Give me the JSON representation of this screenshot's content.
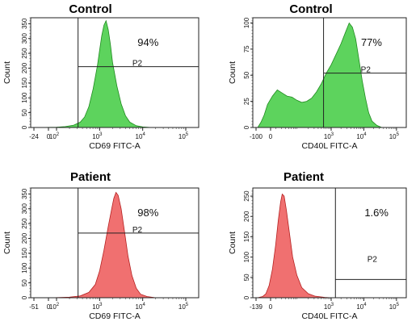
{
  "chart_data": [
    {
      "type": "area",
      "title": "Control",
      "xlabel": "CD69 FITC-A",
      "ylabel": "Count",
      "x_scale": "log",
      "x_ticks": [
        {
          "label": "-24",
          "value": -24,
          "sup": ""
        },
        {
          "label": "0",
          "value": 0,
          "sup": ""
        },
        {
          "label": "10",
          "value": 100,
          "sup": "2"
        },
        {
          "label": "10",
          "value": 1000,
          "sup": "3"
        },
        {
          "label": "10",
          "value": 10000,
          "sup": "4"
        },
        {
          "label": "10",
          "value": 100000,
          "sup": "5"
        }
      ],
      "y_ticks": [
        "0",
        "50",
        "100",
        "150",
        "200",
        "250",
        "300",
        "350"
      ],
      "ylim": [
        0,
        370
      ],
      "x_log_range": [
        1.4,
        5.3
      ],
      "fill_color": "#5dd35d",
      "stroke_color": "#1f8a1f",
      "gate": {
        "label": "P2",
        "percent": "94%",
        "x_start": 316,
        "level": 205
      },
      "series": [
        {
          "values": [
            [
              1.6,
              0
            ],
            [
              2.0,
              1
            ],
            [
              2.2,
              3
            ],
            [
              2.4,
              8
            ],
            [
              2.55,
              18
            ],
            [
              2.65,
              35
            ],
            [
              2.75,
              70
            ],
            [
              2.85,
              130
            ],
            [
              2.95,
              210
            ],
            [
              3.0,
              260
            ],
            [
              3.05,
              310
            ],
            [
              3.1,
              345
            ],
            [
              3.15,
              360
            ],
            [
              3.2,
              330
            ],
            [
              3.25,
              280
            ],
            [
              3.3,
              220
            ],
            [
              3.4,
              140
            ],
            [
              3.5,
              80
            ],
            [
              3.6,
              40
            ],
            [
              3.7,
              18
            ],
            [
              3.85,
              6
            ],
            [
              4.0,
              2
            ],
            [
              4.2,
              0
            ]
          ]
        }
      ]
    },
    {
      "type": "area",
      "title": "Control",
      "xlabel": "CD40L FITC-A",
      "ylabel": "Count",
      "x_scale": "log",
      "x_ticks": [
        {
          "label": "-100",
          "value": -100,
          "sup": ""
        },
        {
          "label": "0",
          "value": 0,
          "sup": ""
        },
        {
          "label": "10",
          "value": 1000,
          "sup": "3"
        },
        {
          "label": "10",
          "value": 10000,
          "sup": "4"
        },
        {
          "label": "10",
          "value": 100000,
          "sup": "5"
        }
      ],
      "y_ticks": [
        "0",
        "25",
        "50",
        "75",
        "100"
      ],
      "ylim": [
        0,
        105
      ],
      "x_log_range": [
        0.6,
        5.3
      ],
      "fill_color": "#5dd35d",
      "stroke_color": "#1f8a1f",
      "gate": {
        "label": "P2",
        "percent": "77%",
        "x_start": 584,
        "level": 52
      },
      "series": [
        {
          "values": [
            [
              0.75,
              0
            ],
            [
              0.85,
              5
            ],
            [
              0.95,
              12
            ],
            [
              1.05,
              22
            ],
            [
              1.2,
              30
            ],
            [
              1.35,
              36
            ],
            [
              1.5,
              33
            ],
            [
              1.65,
              30
            ],
            [
              1.8,
              29
            ],
            [
              1.95,
              26
            ],
            [
              2.1,
              24
            ],
            [
              2.25,
              25
            ],
            [
              2.4,
              28
            ],
            [
              2.55,
              34
            ],
            [
              2.7,
              42
            ],
            [
              2.85,
              52
            ],
            [
              3.0,
              60
            ],
            [
              3.15,
              70
            ],
            [
              3.3,
              80
            ],
            [
              3.45,
              92
            ],
            [
              3.55,
              100
            ],
            [
              3.65,
              96
            ],
            [
              3.75,
              85
            ],
            [
              3.85,
              65
            ],
            [
              3.95,
              45
            ],
            [
              4.05,
              28
            ],
            [
              4.15,
              14
            ],
            [
              4.25,
              6
            ],
            [
              4.4,
              2
            ],
            [
              4.55,
              0
            ]
          ]
        }
      ]
    },
    {
      "type": "area",
      "title": "Patient",
      "xlabel": "CD69 FITC-A",
      "ylabel": "Count",
      "x_scale": "log",
      "x_ticks": [
        {
          "label": "-51",
          "value": -51,
          "sup": ""
        },
        {
          "label": "0",
          "value": 0,
          "sup": ""
        },
        {
          "label": "10",
          "value": 100,
          "sup": "2"
        },
        {
          "label": "10",
          "value": 1000,
          "sup": "3"
        },
        {
          "label": "10",
          "value": 10000,
          "sup": "4"
        },
        {
          "label": "10",
          "value": 100000,
          "sup": "5"
        }
      ],
      "y_ticks": [
        "0",
        "50",
        "100",
        "150",
        "200",
        "250",
        "300",
        "350"
      ],
      "ylim": [
        0,
        370
      ],
      "x_log_range": [
        1.4,
        5.3
      ],
      "fill_color": "#f07070",
      "stroke_color": "#b52020",
      "gate": {
        "label": "P2",
        "percent": "98%",
        "x_start": 316,
        "level": 218
      },
      "series": [
        {
          "values": [
            [
              1.9,
              0
            ],
            [
              2.3,
              2
            ],
            [
              2.55,
              6
            ],
            [
              2.75,
              18
            ],
            [
              2.9,
              45
            ],
            [
              3.0,
              90
            ],
            [
              3.1,
              160
            ],
            [
              3.2,
              240
            ],
            [
              3.28,
              300
            ],
            [
              3.33,
              335
            ],
            [
              3.38,
              355
            ],
            [
              3.43,
              345
            ],
            [
              3.5,
              300
            ],
            [
              3.58,
              220
            ],
            [
              3.66,
              140
            ],
            [
              3.75,
              75
            ],
            [
              3.85,
              32
            ],
            [
              3.95,
              12
            ],
            [
              4.1,
              4
            ],
            [
              4.3,
              0
            ]
          ]
        }
      ]
    },
    {
      "type": "area",
      "title": "Patient",
      "xlabel": "CD40L FITC-A",
      "ylabel": "Count",
      "x_scale": "log",
      "x_ticks": [
        {
          "label": "-139",
          "value": -139,
          "sup": ""
        },
        {
          "label": "0",
          "value": 0,
          "sup": ""
        },
        {
          "label": "10",
          "value": 1000,
          "sup": "3"
        },
        {
          "label": "10",
          "value": 10000,
          "sup": "4"
        },
        {
          "label": "10",
          "value": 100000,
          "sup": "5"
        }
      ],
      "y_ticks": [
        "0",
        "50",
        "100",
        "150",
        "200",
        "250"
      ],
      "ylim": [
        0,
        270
      ],
      "x_log_range": [
        0.6,
        5.3
      ],
      "fill_color": "#f07070",
      "stroke_color": "#b52020",
      "gate": {
        "label": "P2",
        "percent": "1.6%",
        "x_start": 1350,
        "level": 45
      },
      "series": [
        {
          "values": [
            [
              0.75,
              0
            ],
            [
              0.9,
              3
            ],
            [
              1.0,
              10
            ],
            [
              1.1,
              30
            ],
            [
              1.2,
              70
            ],
            [
              1.3,
              130
            ],
            [
              1.38,
              190
            ],
            [
              1.45,
              235
            ],
            [
              1.5,
              255
            ],
            [
              1.56,
              250
            ],
            [
              1.63,
              215
            ],
            [
              1.72,
              160
            ],
            [
              1.82,
              100
            ],
            [
              1.95,
              55
            ],
            [
              2.1,
              25
            ],
            [
              2.3,
              10
            ],
            [
              2.5,
              4
            ],
            [
              2.8,
              1
            ],
            [
              3.0,
              0
            ]
          ]
        }
      ]
    }
  ]
}
